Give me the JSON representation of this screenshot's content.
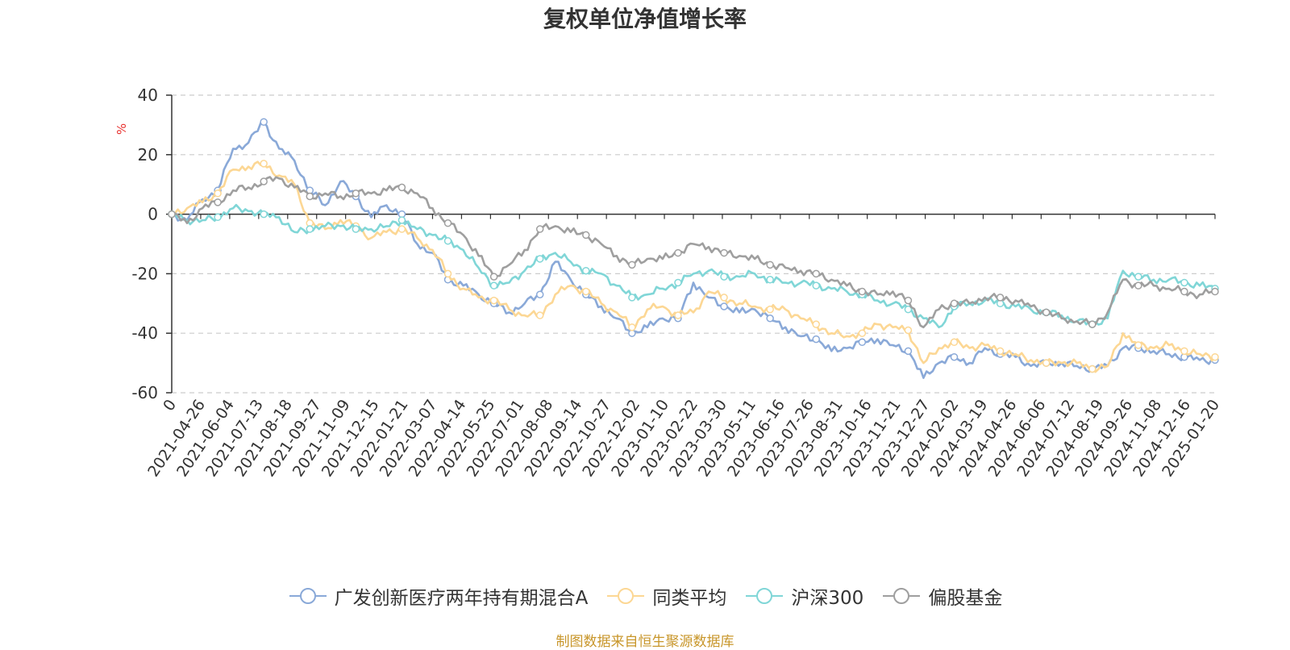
{
  "chart_data": {
    "type": "line",
    "title": "复权单位净值增长率",
    "ylabel": "%",
    "ylim": [
      -60,
      40
    ],
    "yticks": [
      40,
      20,
      0,
      -20,
      -40,
      -60
    ],
    "x_start_label": "0",
    "x_tick_labels": [
      "2021-04-26",
      "2021-06-04",
      "2021-07-13",
      "2021-08-18",
      "2021-09-27",
      "2021-11-09",
      "2021-12-15",
      "2022-01-21",
      "2022-03-07",
      "2022-04-14",
      "2022-05-25",
      "2022-07-01",
      "2022-08-08",
      "2022-09-14",
      "2022-10-27",
      "2022-12-02",
      "2023-01-10",
      "2023-02-22",
      "2023-03-30",
      "2023-05-11",
      "2023-06-16",
      "2023-07-26",
      "2023-08-31",
      "2023-10-16",
      "2023-11-21",
      "2023-12-27",
      "2024-02-02",
      "2024-03-19",
      "2024-04-26",
      "2024-06-06",
      "2024-07-12",
      "2024-08-19",
      "2024-09-26",
      "2024-11-08",
      "2024-12-16",
      "2025-01-20"
    ],
    "grid": true,
    "legend_position": "bottom",
    "series": [
      {
        "name": "广发创新医疗两年持有期混合A",
        "color": "#8aa9d8",
        "values": [
          0,
          -2,
          5,
          8,
          22,
          24,
          31,
          22,
          18,
          8,
          3,
          11,
          6,
          -1,
          3,
          0,
          -10,
          -13,
          -22,
          -24,
          -27,
          -30,
          -33,
          -30,
          -27,
          -16,
          -22,
          -27,
          -31,
          -35,
          -40,
          -38,
          -35,
          -35,
          -23,
          -28,
          -31,
          -33,
          -32,
          -35,
          -38,
          -41,
          -42,
          -46,
          -45,
          -43,
          -42,
          -44,
          -46,
          -55,
          -50,
          -48,
          -50,
          -45,
          -47,
          -48,
          -51,
          -50,
          -50,
          -51,
          -52,
          -51,
          -45,
          -45,
          -46,
          -47,
          -48,
          -49,
          -49
        ]
      },
      {
        "name": "同类平均",
        "color": "#fcd794",
        "values": [
          0,
          2,
          4,
          7,
          15,
          16,
          17,
          13,
          10,
          -3,
          -5,
          -2,
          -4,
          -8,
          -6,
          -5,
          -8,
          -12,
          -20,
          -25,
          -28,
          -29,
          -32,
          -34,
          -34,
          -27,
          -24,
          -26,
          -30,
          -33,
          -38,
          -32,
          -31,
          -34,
          -33,
          -26,
          -28,
          -30,
          -31,
          -32,
          -32,
          -35,
          -37,
          -40,
          -41,
          -40,
          -37,
          -38,
          -39,
          -50,
          -45,
          -43,
          -45,
          -44,
          -46,
          -47,
          -49,
          -50,
          -50,
          -50,
          -52,
          -51,
          -40,
          -44,
          -45,
          -44,
          -46,
          -47,
          -48
        ]
      },
      {
        "name": "沪深300",
        "color": "#80d6d7",
        "values": [
          0,
          -2,
          -2,
          -1,
          2,
          1,
          0,
          -1,
          -6,
          -5,
          -4,
          -4,
          -5,
          -5,
          -4,
          -2,
          -5,
          -7,
          -9,
          -12,
          -18,
          -24,
          -23,
          -19,
          -15,
          -13,
          -16,
          -19,
          -20,
          -24,
          -28,
          -27,
          -25,
          -23,
          -20,
          -19,
          -21,
          -21,
          -20,
          -22,
          -23,
          -23,
          -24,
          -25,
          -26,
          -27,
          -29,
          -30,
          -32,
          -35,
          -38,
          -31,
          -30,
          -29,
          -30,
          -31,
          -32,
          -33,
          -34,
          -36,
          -37,
          -35,
          -19,
          -21,
          -22,
          -22,
          -23,
          -24,
          -25
        ]
      },
      {
        "name": "偏股基金",
        "color": "#9f9f9f",
        "values": [
          0,
          -3,
          2,
          4,
          8,
          9,
          11,
          12,
          9,
          6,
          7,
          6,
          7,
          7,
          8,
          9,
          7,
          2,
          -3,
          -7,
          -14,
          -21,
          -17,
          -12,
          -5,
          -4,
          -6,
          -7,
          -10,
          -14,
          -17,
          -15,
          -15,
          -13,
          -10,
          -11,
          -13,
          -14,
          -15,
          -17,
          -18,
          -19,
          -20,
          -22,
          -24,
          -26,
          -27,
          -26,
          -29,
          -38,
          -32,
          -30,
          -30,
          -28,
          -28,
          -29,
          -31,
          -33,
          -35,
          -36,
          -37,
          -33,
          -22,
          -24,
          -24,
          -25,
          -26,
          -27,
          -26
        ]
      }
    ]
  },
  "source_note": "制图数据来自恒生聚源数据库"
}
